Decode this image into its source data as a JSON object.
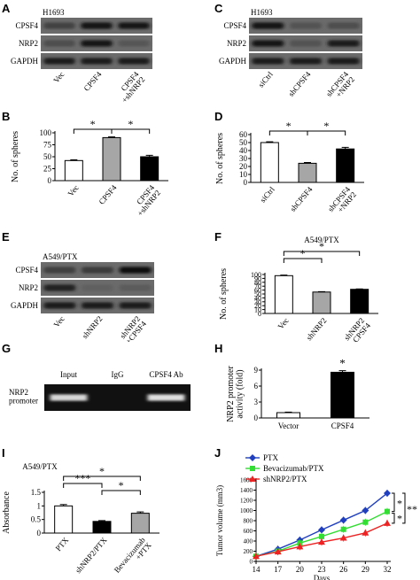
{
  "panels": {
    "A": {
      "letter": "A",
      "cell_line": "H1693",
      "rows": [
        "CPSF4",
        "NRP2",
        "GAPDH"
      ],
      "lanes": [
        "Vec",
        "CPSF4",
        "CPSF4\n+shNRP2"
      ]
    },
    "B": {
      "letter": "B",
      "ylabel": "No. of spheres",
      "yticks": [
        "0",
        "25",
        "50",
        "75",
        "100"
      ],
      "significance": [
        "*",
        "*"
      ],
      "chart_data": {
        "type": "bar",
        "categories": [
          "Vec",
          "CPSF4",
          "CPSF4\n+shNRP2"
        ],
        "values": [
          42,
          90,
          50
        ],
        "errors": [
          1.5,
          1.5,
          3
        ],
        "ylim": [
          0,
          100
        ],
        "colors": [
          "#ffffff",
          "#a6a6a6",
          "#000000"
        ]
      }
    },
    "C": {
      "letter": "C",
      "cell_line": "H1693",
      "rows": [
        "CPSF4",
        "NRP2",
        "GAPDH"
      ],
      "lanes": [
        "siCtrl",
        "shCPSF4",
        "shCPSF4\n+NRP2"
      ]
    },
    "D": {
      "letter": "D",
      "ylabel": "No. of spheres",
      "yticks": [
        "0",
        "10",
        "20",
        "30",
        "40",
        "50",
        "60"
      ],
      "significance": [
        "*",
        "*"
      ],
      "chart_data": {
        "type": "bar",
        "categories": [
          "siCtrl",
          "shCPSF4",
          "shCPSF4\n+NRP2"
        ],
        "values": [
          50,
          24,
          42
        ],
        "errors": [
          1,
          1,
          2
        ],
        "ylim": [
          0,
          60
        ],
        "colors": [
          "#ffffff",
          "#a6a6a6",
          "#000000"
        ]
      }
    },
    "E": {
      "letter": "E",
      "cell_line": "A549/PTX",
      "rows": [
        "CPSF4",
        "NRP2",
        "GAPDH"
      ],
      "lanes": [
        "Vec",
        "shNRP2",
        "shNRP2\n+CPSF4"
      ]
    },
    "F": {
      "letter": "F",
      "title": "A549/PTX",
      "ylabel": "No. of spheres",
      "yticks": [
        "0",
        "10",
        "20",
        "30",
        "40",
        "50",
        "60",
        "70",
        "80",
        "90",
        "100"
      ],
      "significance": [
        "*",
        "*"
      ],
      "chart_data": {
        "type": "bar",
        "categories": [
          "Vec",
          "shNRP2",
          "shNRP2\n+CPSF4"
        ],
        "values": [
          97,
          55,
          62
        ],
        "errors": [
          1.5,
          1,
          1
        ],
        "ylim": [
          0,
          100
        ],
        "colors": [
          "#ffffff",
          "#a6a6a6",
          "#000000"
        ]
      }
    },
    "G": {
      "letter": "G",
      "columns": [
        "Input",
        "IgG",
        "CPSF4 Ab"
      ],
      "row_label": "NRP2\npromoter"
    },
    "H": {
      "letter": "H",
      "ylabel": "NRP2 promoter\nactivity (fold)",
      "yticks": [
        "0",
        "3",
        "6",
        "9"
      ],
      "significance": [
        "*"
      ],
      "chart_data": {
        "type": "bar",
        "categories": [
          "Vector",
          "CPSF4"
        ],
        "values": [
          1,
          8.6
        ],
        "errors": [
          0.1,
          0.3
        ],
        "ylim": [
          0,
          9
        ],
        "colors": [
          "#ffffff",
          "#000000"
        ]
      }
    },
    "I": {
      "letter": "I",
      "title": "A549/PTX",
      "ylabel": "Absorbance",
      "yticks": [
        "0",
        "0.5",
        "1",
        "1.5"
      ],
      "significance": [
        "***",
        "*",
        "*"
      ],
      "chart_data": {
        "type": "bar",
        "categories": [
          "PTX",
          "shNRP2/PTX",
          "Bevacizumab\n+PTX"
        ],
        "values": [
          1.0,
          0.43,
          0.73
        ],
        "errors": [
          0.05,
          0.03,
          0.05
        ],
        "ylim": [
          0,
          1.5
        ],
        "colors": [
          "#ffffff",
          "#000000",
          "#a6a6a6"
        ]
      }
    },
    "J": {
      "letter": "J",
      "ylabel": "Tumor volume (mm3)",
      "xlabel": "Days",
      "yticks": [
        "0",
        "200",
        "400",
        "600",
        "800",
        "1000",
        "1200",
        "1400",
        "1600"
      ],
      "xticks": [
        "14",
        "17",
        "20",
        "23",
        "26",
        "29",
        "32"
      ],
      "significance": [
        "*",
        "*",
        "**"
      ],
      "chart_data": {
        "type": "line",
        "x": [
          14,
          17,
          20,
          23,
          26,
          29,
          32
        ],
        "xlim": [
          14,
          32
        ],
        "ylim": [
          0,
          1600
        ],
        "series": [
          {
            "name": "PTX",
            "color": "#1f3fbf",
            "marker": "diamond",
            "values": [
              100,
              240,
              420,
              620,
              810,
              1000,
              1340
            ]
          },
          {
            "name": "Bevacizumab/PTX",
            "color": "#33dd33",
            "marker": "square",
            "values": [
              100,
              200,
              360,
              490,
              630,
              770,
              980
            ]
          },
          {
            "name": "shNRP2/PTX",
            "color": "#ee2222",
            "marker": "triangle",
            "values": [
              100,
              190,
              290,
              380,
              460,
              560,
              750
            ]
          }
        ]
      }
    }
  }
}
